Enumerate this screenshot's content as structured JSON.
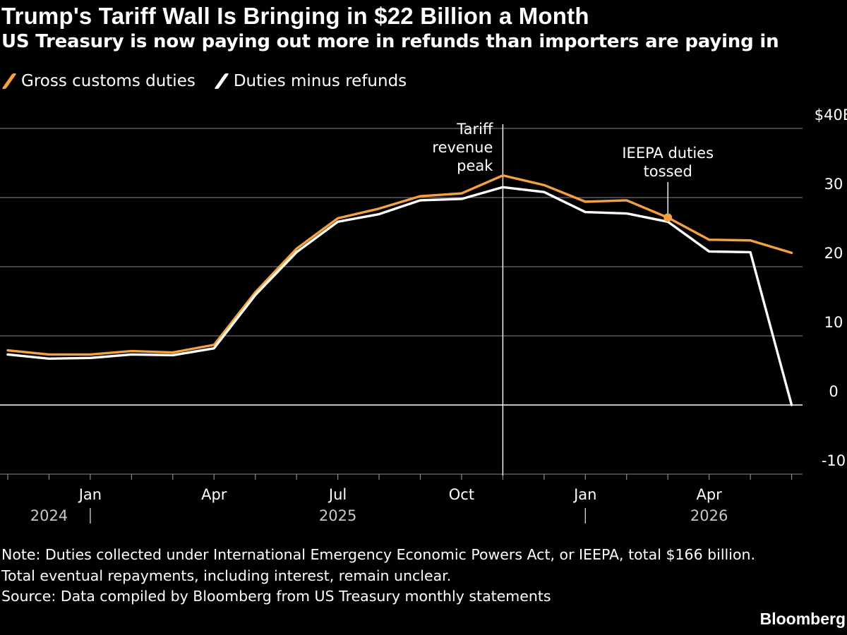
{
  "chart_data": {
    "type": "line",
    "title": "Trump's Tariff Wall Is Bringing in $22 Billion a Month",
    "subtitle": "US Treasury is now paying out more in refunds than importers are paying in",
    "x": [
      "2024-11",
      "2024-12",
      "2025-01",
      "2025-02",
      "2025-03",
      "2025-04",
      "2025-05",
      "2025-06",
      "2025-07",
      "2025-08",
      "2025-09",
      "2025-10",
      "2025-11",
      "2025-12",
      "2026-01",
      "2026-02",
      "2026-03",
      "2026-04",
      "2026-05",
      "2026-06"
    ],
    "series": [
      {
        "name": "Gross customs duties",
        "color": "#f5a142",
        "values": [
          7.9,
          7.3,
          7.3,
          7.8,
          7.6,
          8.7,
          16.3,
          22.6,
          27.0,
          28.4,
          30.2,
          30.6,
          33.2,
          31.8,
          29.4,
          29.6,
          27.1,
          23.9,
          23.8,
          22.0
        ]
      },
      {
        "name": "Duties minus refunds",
        "color": "#ffffff",
        "values": [
          7.3,
          6.7,
          6.8,
          7.3,
          7.2,
          8.2,
          15.9,
          22.1,
          26.5,
          27.6,
          29.6,
          29.8,
          31.5,
          30.8,
          27.9,
          27.7,
          26.5,
          22.2,
          22.1,
          0.0
        ]
      }
    ],
    "ylim": [
      -10,
      40
    ],
    "yticks": [
      {
        "value": 40,
        "label": "$40B"
      },
      {
        "value": 30,
        "label": "30"
      },
      {
        "value": 20,
        "label": "20"
      },
      {
        "value": 10,
        "label": "10"
      },
      {
        "value": 0,
        "label": "0"
      },
      {
        "value": -10,
        "label": "-10"
      }
    ],
    "month_labels": [
      {
        "x": "2025-01",
        "label": "Jan"
      },
      {
        "x": "2025-04",
        "label": "Apr"
      },
      {
        "x": "2025-07",
        "label": "Jul"
      },
      {
        "x": "2025-10",
        "label": "Oct"
      },
      {
        "x": "2026-01",
        "label": "Jan"
      },
      {
        "x": "2026-04",
        "label": "Apr"
      }
    ],
    "year_labels": [
      {
        "x": "2024-12",
        "label": "2024"
      },
      {
        "x": "2025-07",
        "label": "2025"
      },
      {
        "x": "2026-04",
        "label": "2026"
      }
    ],
    "year_dividers": [
      "2025-01",
      "2026-01"
    ],
    "annotations": [
      {
        "x": "2025-11",
        "text": [
          "Tariff",
          "revenue",
          "peak"
        ],
        "type": "vertical-line"
      },
      {
        "x": "2026-03",
        "text": [
          "IEEPA duties",
          "tossed"
        ],
        "type": "marker",
        "value": 27.1
      }
    ],
    "grid": true,
    "legend_position": "top-left"
  },
  "notes": [
    "Note: Duties collected under International Emergency Economic Powers Act, or IEEPA, total $166 billion.",
    "Total eventual repayments, including interest, remain unclear.",
    "Source: Data compiled by Bloomberg from US Treasury monthly statements"
  ],
  "brand": "Bloomberg"
}
